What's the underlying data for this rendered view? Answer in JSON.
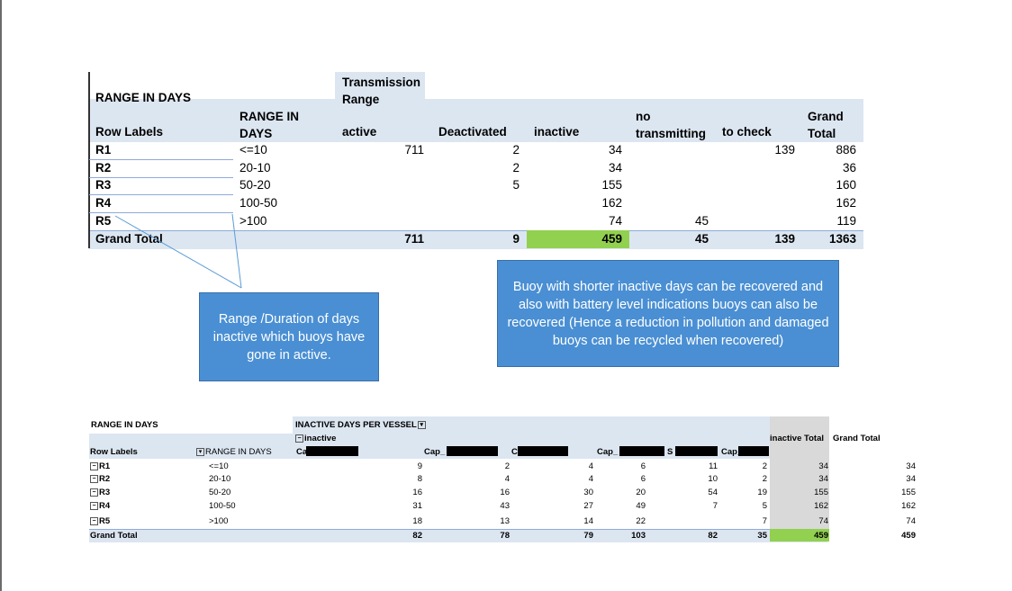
{
  "table1": {
    "title": "RANGE IN DAYS",
    "header_group": "Transmission\nRange",
    "row_label_header": "Row Labels",
    "range_header": "RANGE IN\nDAYS",
    "columns": [
      "active",
      "Deactivated",
      "inactive",
      "no\ntransmitting",
      "to check",
      "Grand\nTotal"
    ],
    "rows": [
      {
        "label": "R1",
        "range": "<=10",
        "active": "711",
        "deactivated": "2",
        "inactive": "34",
        "no_transmitting": "",
        "to_check": "139",
        "total": "886"
      },
      {
        "label": "R2",
        "range": "20-10",
        "active": "",
        "deactivated": "2",
        "inactive": "34",
        "no_transmitting": "",
        "to_check": "",
        "total": "36"
      },
      {
        "label": "R3",
        "range": "50-20",
        "active": "",
        "deactivated": "5",
        "inactive": "155",
        "no_transmitting": "",
        "to_check": "",
        "total": "160"
      },
      {
        "label": "R4",
        "range": "100-50",
        "active": "",
        "deactivated": "",
        "inactive": "162",
        "no_transmitting": "",
        "to_check": "",
        "total": "162"
      },
      {
        "label": "R5",
        "range": ">100",
        "active": "",
        "deactivated": "",
        "inactive": "74",
        "no_transmitting": "45",
        "to_check": "",
        "total": "119"
      }
    ],
    "grand_total": {
      "label": "Grand Total",
      "active": "711",
      "deactivated": "9",
      "inactive": "459",
      "no_transmitting": "45",
      "to_check": "139",
      "total": "1363"
    },
    "highlight_color": "#92d050",
    "header_color": "#dce6f1"
  },
  "callout_left": {
    "text": "Range /Duration of days inactive  which buoys have gone in active."
  },
  "callout_right": {
    "text": "Buoy with shorter inactive days can be recovered and also with battery level indications  buoys can also be recovered (Hence a reduction in pollution and damaged buoys can be recycled when recovered)"
  },
  "table2": {
    "title": "RANGE IN DAYS",
    "filter_header": "INACTIVE DAYS PER VESSEL",
    "group_label": "inactive",
    "row_label_header": "Row Labels",
    "range_header": "RANGE IN DAYS",
    "vessel_headers": [
      "Ca",
      "Cap_",
      "C",
      "Cap_",
      "S",
      "Cap_"
    ],
    "inactive_total_header": "inactive Total",
    "grand_total_header": "Grand Total",
    "rows": [
      {
        "label": "R1",
        "range": "<=10",
        "values": [
          "9",
          "2",
          "4",
          "6",
          "11",
          "2"
        ],
        "inactive_total": "34",
        "grand_total": "34"
      },
      {
        "label": "R2",
        "range": "20-10",
        "values": [
          "8",
          "4",
          "4",
          "6",
          "10",
          "2"
        ],
        "inactive_total": "34",
        "grand_total": "34"
      },
      {
        "label": "R3",
        "range": "50-20",
        "values": [
          "16",
          "16",
          "30",
          "20",
          "54",
          "19"
        ],
        "inactive_total": "155",
        "grand_total": "155"
      },
      {
        "label": "R4",
        "range": "100-50",
        "values": [
          "31",
          "43",
          "27",
          "49",
          "7",
          "5"
        ],
        "inactive_total": "162",
        "grand_total": "162"
      },
      {
        "label": "R5",
        "range": ">100",
        "values": [
          "18",
          "13",
          "14",
          "22",
          "",
          "7"
        ],
        "inactive_total": "74",
        "grand_total": "74"
      }
    ],
    "grand_total": {
      "label": "Grand Total",
      "values": [
        "82",
        "78",
        "79",
        "103",
        "82",
        "35"
      ],
      "inactive_total": "459",
      "grand_total": "459"
    }
  }
}
